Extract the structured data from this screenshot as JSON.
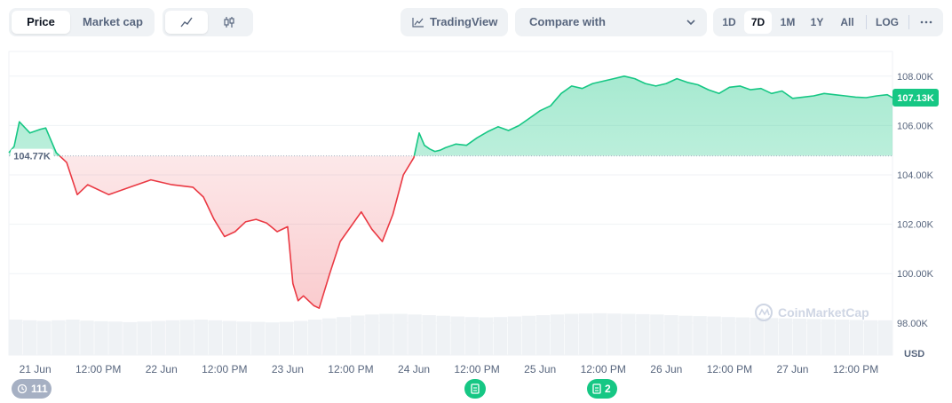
{
  "toolbar": {
    "price_tab": "Price",
    "market_cap_tab": "Market cap",
    "line_icon": "line-chart-icon",
    "candle_icon": "candlestick-icon",
    "tradingview_label": "TradingView",
    "compare_label": "Compare with",
    "ranges": [
      "1D",
      "7D",
      "1M",
      "1Y",
      "All"
    ],
    "active_range": "7D",
    "log_label": "LOG",
    "more_icon": "more-horizontal-icon"
  },
  "events": {
    "history_count": "111",
    "news_1_icon": "document-icon",
    "news_2_icon": "document-icon",
    "news_2_count": "2"
  },
  "watermark": "CoinMarketCap",
  "colors": {
    "up": "#16c784",
    "down": "#ea3943",
    "current_badge": "#16c784",
    "baseline_badge_text": "#58667e"
  },
  "chart_data": {
    "type": "area",
    "title": "",
    "xlabel": "",
    "ylabel": "",
    "y_unit": "USD",
    "ylim": [
      96700,
      109000
    ],
    "yticks": [
      98000,
      100000,
      102000,
      104000,
      106000,
      108000
    ],
    "ytick_labels": [
      "98.00K",
      "100.00K",
      "102.00K",
      "104.00K",
      "106.00K",
      "108.00K"
    ],
    "x_range": [
      "2025-06-20 19:00",
      "2025-06-27 19:00"
    ],
    "xtick_labels": [
      "21 Jun",
      "12:00 PM",
      "22 Jun",
      "12:00 PM",
      "23 Jun",
      "12:00 PM",
      "24 Jun",
      "12:00 PM",
      "25 Jun",
      "12:00 PM",
      "26 Jun",
      "12:00 PM",
      "27 Jun",
      "12:00 PM"
    ],
    "xtick_times": [
      "2025-06-21 00:00",
      "2025-06-21 12:00",
      "2025-06-22 00:00",
      "2025-06-22 12:00",
      "2025-06-23 00:00",
      "2025-06-23 12:00",
      "2025-06-24 00:00",
      "2025-06-24 12:00",
      "2025-06-25 00:00",
      "2025-06-25 12:00",
      "2025-06-26 00:00",
      "2025-06-26 12:00",
      "2025-06-27 00:00",
      "2025-06-27 12:00"
    ],
    "baseline": {
      "value": 104770,
      "label": "104.77K"
    },
    "current": {
      "value": 107130,
      "label": "107.13K"
    },
    "grid": true,
    "series": [
      {
        "x": [
          "2025-06-20 19:00",
          "2025-06-20 20:00",
          "2025-06-20 21:00",
          "2025-06-20 23:00",
          "2025-06-21 01:00",
          "2025-06-21 02:00",
          "2025-06-21 04:00",
          "2025-06-21 06:00",
          "2025-06-21 08:00",
          "2025-06-21 10:00",
          "2025-06-21 14:00",
          "2025-06-21 18:00",
          "2025-06-21 22:00",
          "2025-06-22 02:00",
          "2025-06-22 06:00",
          "2025-06-22 08:00",
          "2025-06-22 10:00",
          "2025-06-22 12:00",
          "2025-06-22 14:00",
          "2025-06-22 16:00",
          "2025-06-22 18:00",
          "2025-06-22 20:00",
          "2025-06-22 22:00",
          "2025-06-23 00:00",
          "2025-06-23 01:00",
          "2025-06-23 02:00",
          "2025-06-23 03:00",
          "2025-06-23 05:00",
          "2025-06-23 06:00",
          "2025-06-23 08:00",
          "2025-06-23 10:00",
          "2025-06-23 12:00",
          "2025-06-23 14:00",
          "2025-06-23 16:00",
          "2025-06-23 18:00",
          "2025-06-23 20:00",
          "2025-06-23 22:00",
          "2025-06-24 00:00",
          "2025-06-24 01:00",
          "2025-06-24 02:00",
          "2025-06-24 03:00",
          "2025-06-24 04:00",
          "2025-06-24 05:00",
          "2025-06-24 06:00",
          "2025-06-24 08:00",
          "2025-06-24 10:00",
          "2025-06-24 12:00",
          "2025-06-24 14:00",
          "2025-06-24 16:00",
          "2025-06-24 18:00",
          "2025-06-24 20:00",
          "2025-06-24 22:00",
          "2025-06-25 00:00",
          "2025-06-25 02:00",
          "2025-06-25 04:00",
          "2025-06-25 06:00",
          "2025-06-25 08:00",
          "2025-06-25 10:00",
          "2025-06-25 12:00",
          "2025-06-25 14:00",
          "2025-06-25 16:00",
          "2025-06-25 18:00",
          "2025-06-25 20:00",
          "2025-06-25 22:00",
          "2025-06-26 00:00",
          "2025-06-26 02:00",
          "2025-06-26 04:00",
          "2025-06-26 06:00",
          "2025-06-26 08:00",
          "2025-06-26 10:00",
          "2025-06-26 12:00",
          "2025-06-26 14:00",
          "2025-06-26 16:00",
          "2025-06-26 18:00",
          "2025-06-26 20:00",
          "2025-06-26 22:00",
          "2025-06-27 00:00",
          "2025-06-27 02:00",
          "2025-06-27 04:00",
          "2025-06-27 06:00",
          "2025-06-27 08:00",
          "2025-06-27 10:00",
          "2025-06-27 12:00",
          "2025-06-27 14:00",
          "2025-06-27 16:00",
          "2025-06-27 18:00",
          "2025-06-27 19:00"
        ],
        "values": [
          104900,
          105150,
          106150,
          105700,
          105850,
          105900,
          104900,
          104500,
          103200,
          103600,
          103200,
          103500,
          103800,
          103600,
          103500,
          103100,
          102200,
          101500,
          101700,
          102100,
          102200,
          102050,
          101700,
          101900,
          99600,
          98900,
          99100,
          98700,
          98600,
          100000,
          101300,
          101900,
          102500,
          101800,
          101300,
          102400,
          104000,
          104700,
          105700,
          105200,
          105050,
          104950,
          105000,
          105100,
          105250,
          105200,
          105500,
          105750,
          105950,
          105800,
          106000,
          106300,
          106600,
          106800,
          107300,
          107600,
          107500,
          107700,
          107800,
          107900,
          108000,
          107900,
          107700,
          107600,
          107700,
          107900,
          107750,
          107650,
          107450,
          107300,
          107550,
          107600,
          107450,
          107500,
          107300,
          107400,
          107100,
          107150,
          107200,
          107300,
          107250,
          107200,
          107150,
          107130,
          107200,
          107250,
          107130
        ]
      }
    ],
    "volume": [
      0.72,
      0.7,
      0.68,
      0.7,
      0.72,
      0.69,
      0.67,
      0.66,
      0.64,
      0.66,
      0.68,
      0.7,
      0.71,
      0.72,
      0.7,
      0.68,
      0.66,
      0.65,
      0.63,
      0.65,
      0.68,
      0.72,
      0.76,
      0.8,
      0.85,
      0.88,
      0.9,
      0.9,
      0.88,
      0.86,
      0.84,
      0.82,
      0.8,
      0.79,
      0.8,
      0.82,
      0.84,
      0.86,
      0.88,
      0.9,
      0.91,
      0.92,
      0.91,
      0.9,
      0.89,
      0.88,
      0.86,
      0.84,
      0.83,
      0.82,
      0.8,
      0.79,
      0.78,
      0.77,
      0.76,
      0.75,
      0.74,
      0.73,
      0.72,
      0.71,
      0.7,
      0.7
    ]
  }
}
